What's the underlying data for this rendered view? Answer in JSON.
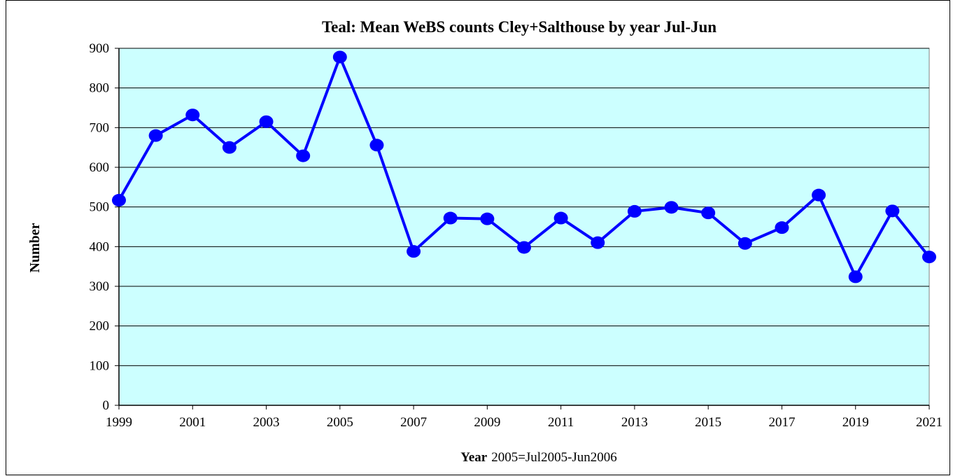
{
  "chart_data": {
    "type": "line",
    "title": "Teal: Mean WeBS counts Cley+Salthouse by year Jul-Jun",
    "xlabel_bold": "Year",
    "xlabel_rest": "2005=Jul2005-Jun2006",
    "ylabel": "Number",
    "x": [
      1999,
      2000,
      2001,
      2002,
      2003,
      2004,
      2005,
      2006,
      2007,
      2008,
      2009,
      2010,
      2011,
      2012,
      2013,
      2014,
      2015,
      2016,
      2017,
      2018,
      2019,
      2020,
      2021
    ],
    "series": [
      {
        "values": [
          517,
          680,
          732,
          650,
          715,
          629,
          878,
          656,
          388,
          472,
          470,
          398,
          472,
          410,
          489,
          499,
          485,
          408,
          448,
          530,
          324,
          490,
          374
        ]
      }
    ],
    "xlim": [
      1999,
      2021
    ],
    "ylim": [
      0,
      900
    ],
    "xticks": [
      1999,
      2001,
      2003,
      2005,
      2007,
      2009,
      2011,
      2013,
      2015,
      2017,
      2019,
      2021
    ],
    "yticks": [
      0,
      100,
      200,
      300,
      400,
      500,
      600,
      700,
      800,
      900
    ],
    "grid": true,
    "legend": "none",
    "colors": {
      "plot_background": "#ccffff",
      "line": "#0000ff",
      "marker": "#0000ff",
      "gridline": "#000000"
    }
  }
}
